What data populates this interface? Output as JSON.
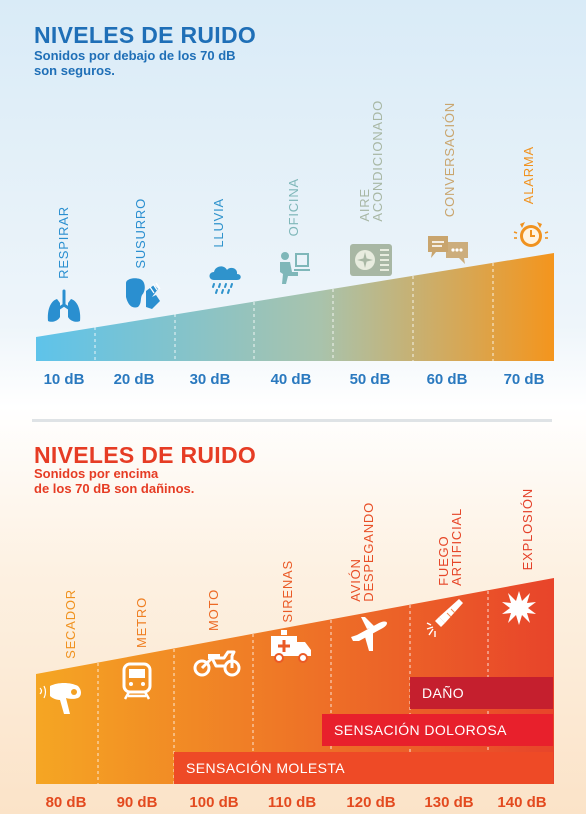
{
  "top": {
    "title": "NIVELES DE RUIDO",
    "subtitle": "Sonidos por debajo de los 70 dB son seguros.",
    "items": [
      {
        "label": "RESPIRAR",
        "color": "#2a8fd0"
      },
      {
        "label": "SUSURRO",
        "color": "#2a8fd0"
      },
      {
        "label": "LLUVIA",
        "color": "#2f93cc"
      },
      {
        "label": "OFICINA",
        "color": "#7fb7b9"
      },
      {
        "label": "AIRE\nACONDICIONADO",
        "color": "#a8b7a4"
      },
      {
        "label": "CONVERSACIÓN",
        "color": "#c9a56e"
      },
      {
        "label": "ALARMA",
        "color": "#f0921f"
      }
    ],
    "levels": [
      "10 dB",
      "20 dB",
      "30 dB",
      "40 dB",
      "50 dB",
      "60 dB",
      "70 dB"
    ]
  },
  "bottom": {
    "title": "NIVELES DE RUIDO",
    "subtitle": "Sonidos por encima\nde los 70 dB son dañinos.",
    "items": [
      {
        "label": "SECADOR",
        "color": "#f0921f"
      },
      {
        "label": "METRO",
        "color": "#ef7f22"
      },
      {
        "label": "MOTO",
        "color": "#ec6a25"
      },
      {
        "label": "SIRENAS",
        "color": "#ea5a26"
      },
      {
        "label": "AVIÓN\nDESPEGANDO",
        "color": "#e84f27"
      },
      {
        "label": "FUEGO\nARTIFICIAL",
        "color": "#e64628"
      },
      {
        "label": "EXPLOSIÓN",
        "color": "#e43f28"
      }
    ],
    "levels": [
      "80 dB",
      "90 dB",
      "100 dB",
      "110 dB",
      "120 dB",
      "130 dB",
      "140 dB"
    ],
    "bands": {
      "harm": "DAÑO",
      "pain": "SENSACIÓN DOLOROSA",
      "annoy": "SENSACIÓN MOLESTA"
    }
  },
  "colors": {
    "safe_start": "#5ec3ea",
    "safe_mid": "#a9c3ac",
    "safe_end": "#f4951d",
    "danger_start": "#f5a623",
    "danger_end": "#e8442a",
    "band_harm": "#c51f2e",
    "band_pain": "#e8202c",
    "band_annoy": "#ee4a26"
  }
}
